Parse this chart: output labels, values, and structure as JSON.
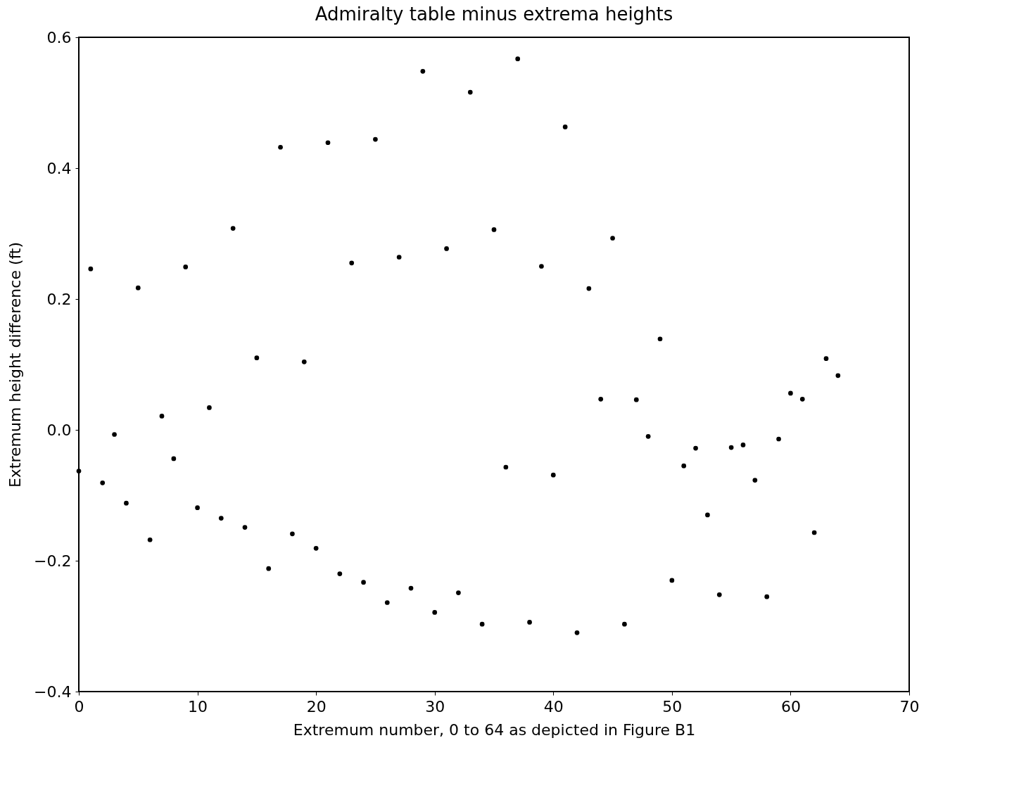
{
  "chart_data": {
    "type": "scatter",
    "title": "Admiralty table minus extrema heights",
    "xlabel": "Extremum number, 0 to 64 as depicted in Figure B1",
    "ylabel": "Extremum height difference (ft)",
    "x": [
      0,
      1,
      2,
      3,
      4,
      5,
      6,
      7,
      8,
      9,
      10,
      11,
      12,
      13,
      14,
      15,
      16,
      17,
      18,
      19,
      20,
      21,
      22,
      23,
      24,
      25,
      26,
      27,
      28,
      29,
      30,
      31,
      32,
      33,
      34,
      35,
      36,
      37,
      38,
      39,
      40,
      41,
      42,
      43,
      44,
      45,
      46,
      47,
      48,
      49,
      50,
      51,
      52,
      53,
      54,
      55,
      56,
      57,
      58,
      59,
      60,
      61,
      62,
      63,
      64
    ],
    "series": [
      {
        "color": "#000000",
        "values": [
          -0.063,
          0.246,
          -0.081,
          -0.007,
          -0.112,
          0.217,
          -0.168,
          0.021,
          -0.044,
          0.249,
          -0.119,
          0.034,
          -0.135,
          0.308,
          -0.149,
          0.11,
          -0.212,
          0.432,
          -0.159,
          0.104,
          -0.181,
          0.439,
          -0.22,
          0.255,
          -0.233,
          0.444,
          -0.264,
          0.264,
          -0.242,
          0.548,
          -0.279,
          0.277,
          -0.249,
          0.516,
          -0.297,
          0.306,
          -0.057,
          0.567,
          -0.294,
          0.25,
          -0.069,
          0.463,
          -0.31,
          0.216,
          0.047,
          0.293,
          -0.297,
          0.046,
          -0.01,
          0.139,
          -0.23,
          -0.055,
          -0.028,
          -0.13,
          -0.252,
          -0.027,
          -0.023,
          -0.077,
          -0.255,
          -0.014,
          0.056,
          0.047,
          -0.157,
          0.109,
          0.083
        ]
      }
    ],
    "xlim": [
      0,
      70
    ],
    "xticks": [
      0,
      10,
      20,
      30,
      40,
      50,
      60,
      70
    ],
    "ylim": [
      -0.4,
      0.6
    ],
    "yticks": [
      {
        "value": -0.4,
        "label": "−0.4"
      },
      {
        "value": -0.2,
        "label": "−0.2"
      },
      {
        "value": 0.0,
        "label": "0.0"
      },
      0.2,
      0.4,
      0.6
    ],
    "grid": false,
    "marker": "circle"
  }
}
